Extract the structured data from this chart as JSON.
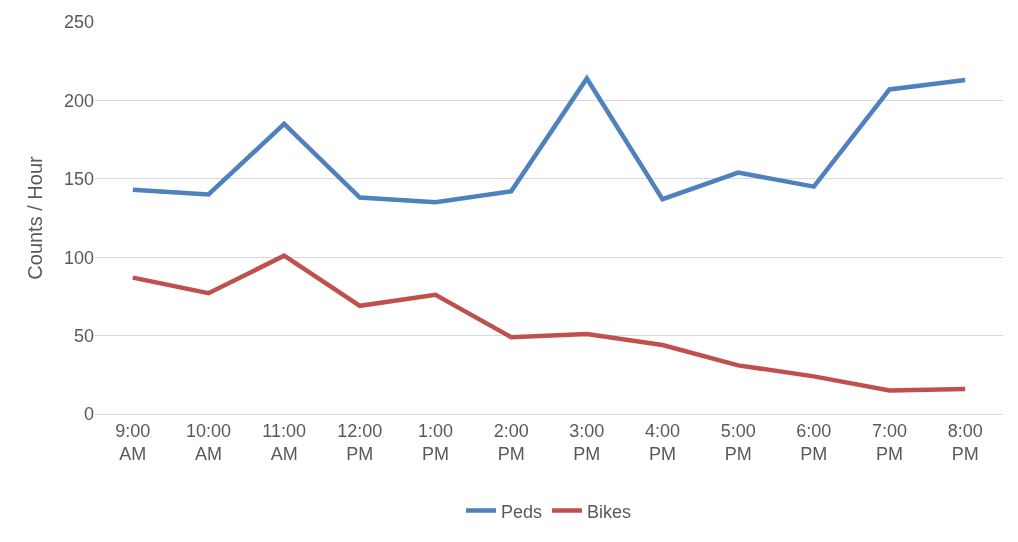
{
  "chart_data": {
    "type": "line",
    "ylabel": "Counts / Hour",
    "categories": [
      "9:00\nAM",
      "10:00\nAM",
      "11:00\nAM",
      "12:00\nPM",
      "1:00\nPM",
      "2:00\nPM",
      "3:00\nPM",
      "4:00\nPM",
      "5:00\nPM",
      "6:00\nPM",
      "7:00\nPM",
      "8:00\nPM"
    ],
    "series": [
      {
        "name": "Peds",
        "color": "#4f81bd",
        "values": [
          143,
          140,
          185,
          138,
          135,
          142,
          214,
          137,
          154,
          145,
          207,
          213
        ]
      },
      {
        "name": "Bikes",
        "color": "#c0504d",
        "values": [
          87,
          77,
          101,
          69,
          76,
          49,
          51,
          44,
          31,
          24,
          15,
          16
        ]
      }
    ],
    "ylim": [
      0,
      250
    ],
    "yticks": [
      0,
      50,
      100,
      150,
      200,
      250
    ],
    "grid": "y",
    "legend": "bottom",
    "marker": "none",
    "line_style": "solid"
  }
}
